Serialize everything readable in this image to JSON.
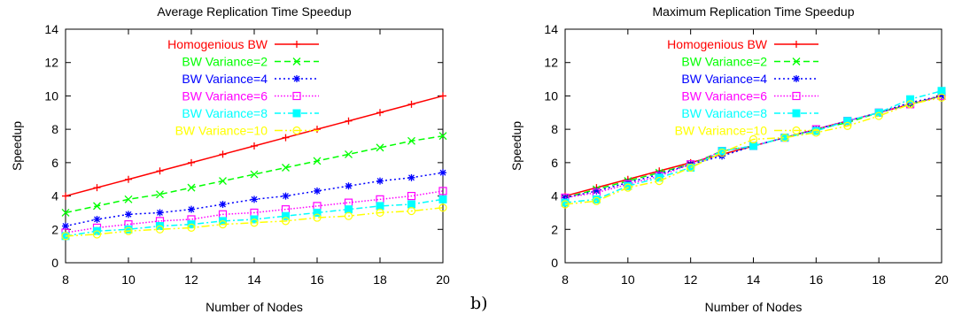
{
  "sublabel": "b)",
  "chart_data": [
    {
      "type": "line",
      "title": "Average Replication Time Speedup",
      "xlabel": "Number of Nodes",
      "ylabel": "Speedup",
      "xlim": [
        8,
        20
      ],
      "ylim": [
        0,
        14
      ],
      "xticks": [
        8,
        10,
        12,
        14,
        16,
        18,
        20
      ],
      "yticks": [
        0,
        2,
        4,
        6,
        8,
        10,
        12,
        14
      ],
      "grid": false,
      "legend_position": "top-left",
      "x": [
        8,
        9,
        10,
        11,
        12,
        13,
        14,
        15,
        16,
        17,
        18,
        19,
        20
      ],
      "series": [
        {
          "name": "Homogenious BW",
          "color": "#ff0000",
          "marker": "plus",
          "dash": "solid",
          "values": [
            4.0,
            4.5,
            5.0,
            5.5,
            6.0,
            6.5,
            7.0,
            7.5,
            8.0,
            8.5,
            9.0,
            9.5,
            10.0
          ]
        },
        {
          "name": "BW Variance=2",
          "color": "#00ff00",
          "marker": "x",
          "dash": "dash",
          "values": [
            3.0,
            3.4,
            3.8,
            4.1,
            4.5,
            4.9,
            5.3,
            5.7,
            6.1,
            6.5,
            6.9,
            7.3,
            7.6
          ]
        },
        {
          "name": "BW Variance=4",
          "color": "#0000ff",
          "marker": "star",
          "dash": "dot",
          "values": [
            2.2,
            2.6,
            2.9,
            3.0,
            3.2,
            3.5,
            3.8,
            4.0,
            4.3,
            4.6,
            4.9,
            5.1,
            5.4
          ]
        },
        {
          "name": "BW Variance=6",
          "color": "#ff00ff",
          "marker": "square",
          "dash": "dotfine",
          "values": [
            1.8,
            2.1,
            2.3,
            2.5,
            2.6,
            2.9,
            3.0,
            3.2,
            3.4,
            3.6,
            3.8,
            4.0,
            4.3
          ]
        },
        {
          "name": "BW Variance=8",
          "color": "#00ffff",
          "marker": "filledsquare",
          "dash": "dashdot",
          "values": [
            1.6,
            1.9,
            2.0,
            2.2,
            2.3,
            2.5,
            2.6,
            2.8,
            3.0,
            3.2,
            3.4,
            3.5,
            3.8
          ]
        },
        {
          "name": "BW Variance=10",
          "color": "#ffff00",
          "marker": "circle",
          "dash": "dashdotdot",
          "values": [
            1.6,
            1.7,
            1.9,
            2.0,
            2.1,
            2.3,
            2.4,
            2.5,
            2.7,
            2.8,
            3.0,
            3.1,
            3.3
          ]
        }
      ]
    },
    {
      "type": "line",
      "title": "Maximum Replication Time Speedup",
      "xlabel": "Number of Nodes",
      "ylabel": "Speedup",
      "xlim": [
        8,
        20
      ],
      "ylim": [
        0,
        14
      ],
      "xticks": [
        8,
        10,
        12,
        14,
        16,
        18,
        20
      ],
      "yticks": [
        0,
        2,
        4,
        6,
        8,
        10,
        12,
        14
      ],
      "grid": false,
      "legend_position": "top-left",
      "x": [
        8,
        9,
        10,
        11,
        12,
        13,
        14,
        15,
        16,
        17,
        18,
        19,
        20
      ],
      "series": [
        {
          "name": "Homogenious BW",
          "color": "#ff0000",
          "marker": "plus",
          "dash": "solid",
          "values": [
            4.0,
            4.5,
            5.0,
            5.5,
            6.0,
            6.5,
            7.0,
            7.5,
            8.0,
            8.5,
            9.0,
            9.5,
            10.0
          ]
        },
        {
          "name": "BW Variance=2",
          "color": "#00ff00",
          "marker": "x",
          "dash": "dash",
          "values": [
            3.9,
            4.4,
            4.9,
            5.4,
            5.9,
            6.7,
            7.0,
            7.5,
            8.0,
            8.4,
            9.0,
            9.5,
            10.0
          ]
        },
        {
          "name": "BW Variance=4",
          "color": "#0000ff",
          "marker": "star",
          "dash": "dot",
          "values": [
            3.9,
            4.3,
            4.8,
            5.3,
            5.9,
            6.4,
            7.0,
            7.5,
            8.0,
            8.5,
            9.0,
            9.6,
            10.0
          ]
        },
        {
          "name": "BW Variance=6",
          "color": "#ff00ff",
          "marker": "square",
          "dash": "dotfine",
          "values": [
            3.9,
            4.2,
            4.7,
            5.2,
            5.9,
            6.7,
            7.0,
            7.5,
            8.0,
            8.5,
            9.0,
            9.5,
            10.0
          ]
        },
        {
          "name": "BW Variance=8",
          "color": "#00ffff",
          "marker": "filledsquare",
          "dash": "dashdot",
          "values": [
            3.6,
            3.8,
            4.6,
            5.1,
            5.7,
            6.7,
            7.0,
            7.5,
            7.9,
            8.5,
            9.0,
            9.8,
            10.3
          ]
        },
        {
          "name": "BW Variance=10",
          "color": "#ffff00",
          "marker": "circle",
          "dash": "dashdotdot",
          "values": [
            3.5,
            3.7,
            4.5,
            4.9,
            5.7,
            6.6,
            7.4,
            7.5,
            7.8,
            8.2,
            8.8,
            9.5,
            9.9
          ]
        }
      ]
    }
  ]
}
